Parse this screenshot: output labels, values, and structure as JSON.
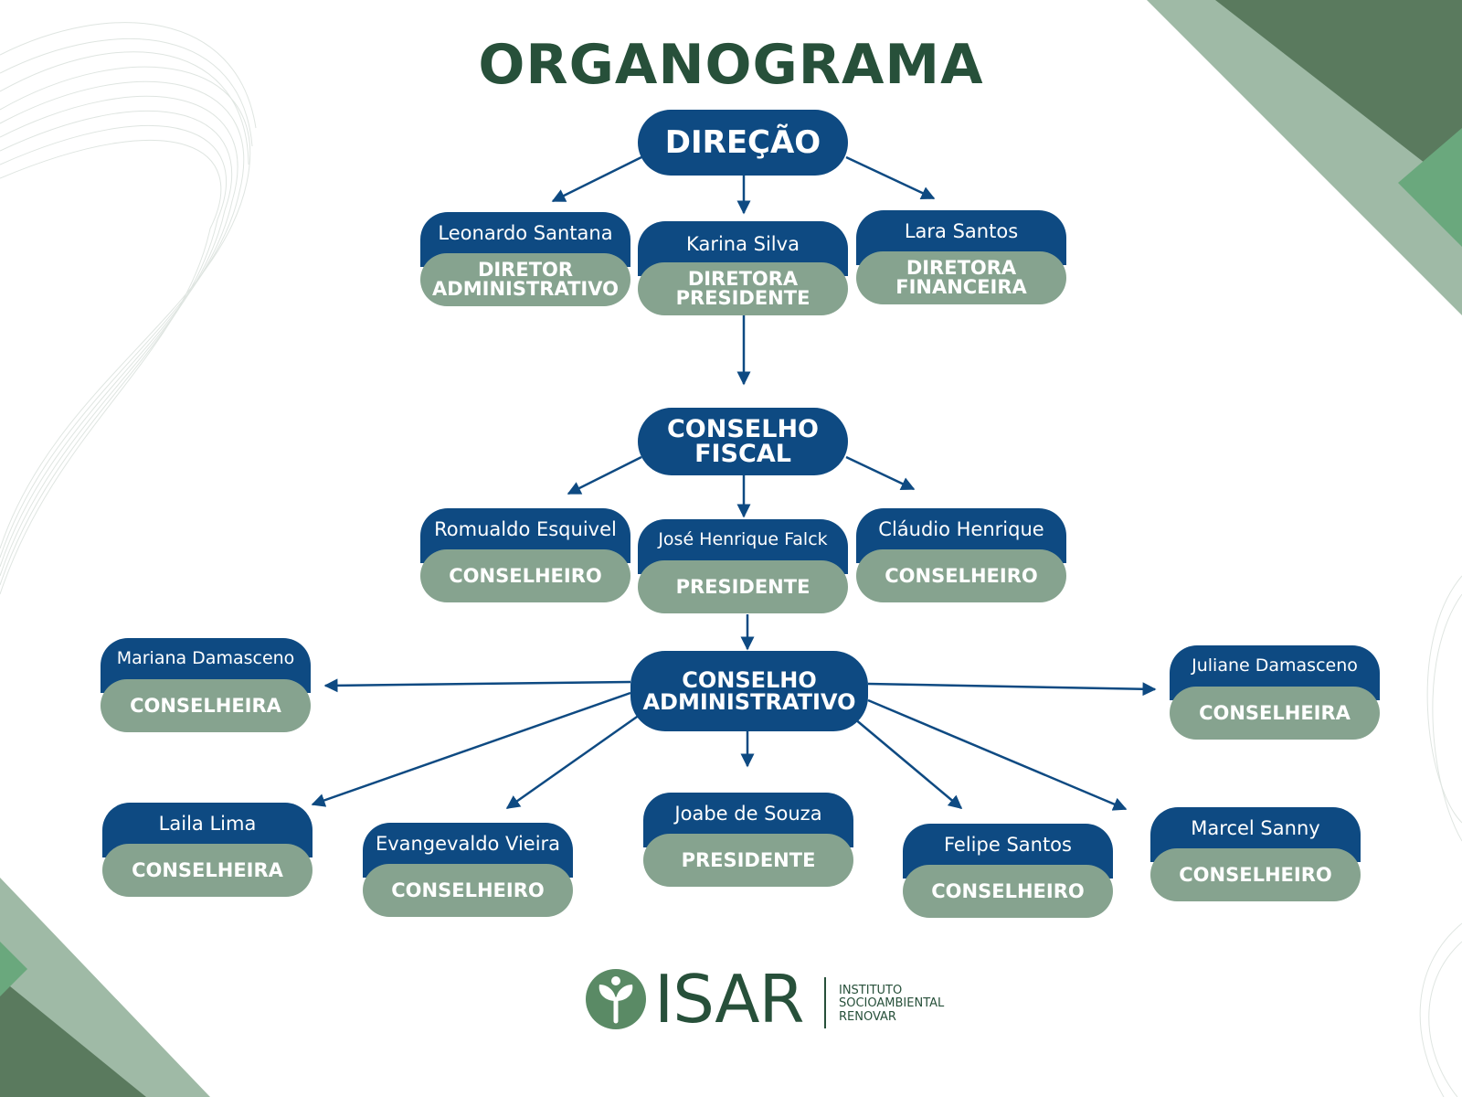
{
  "title": "ORGANOGRAMA",
  "colors": {
    "navy": "#0e4a82",
    "sage": "#86a38f",
    "dark_green": "#27503a",
    "corner_green": "#5a7a5e",
    "corner_light": "#9fbaa6"
  },
  "direcao": {
    "label": "DIREÇÃO",
    "members": [
      {
        "name": "Leonardo Santana",
        "role": "DIRETOR\nADMINISTRATIVO"
      },
      {
        "name": "Karina Silva",
        "role": "DIRETORA\nPRESIDENTE"
      },
      {
        "name": "Lara Santos",
        "role": "DIRETORA\nFINANCEIRA"
      }
    ]
  },
  "conselho_fiscal": {
    "label": "CONSELHO\nFISCAL",
    "members": [
      {
        "name": "Romualdo Esquivel",
        "role": "CONSELHEIRO"
      },
      {
        "name": "José Henrique Falck",
        "role": "PRESIDENTE"
      },
      {
        "name": "Cláudio Henrique",
        "role": "CONSELHEIRO"
      }
    ]
  },
  "conselho_administrativo": {
    "label": "CONSELHO\nADMINISTRATIVO",
    "members": [
      {
        "name": "Mariana Damasceno",
        "role": "CONSELHEIRA"
      },
      {
        "name": "Juliane Damasceno",
        "role": "CONSELHEIRA"
      },
      {
        "name": "Laila Lima",
        "role": "CONSELHEIRA"
      },
      {
        "name": "Evangevaldo Vieira",
        "role": "CONSELHEIRO"
      },
      {
        "name": "Joabe de Souza",
        "role": "PRESIDENTE"
      },
      {
        "name": "Felipe Santos",
        "role": "CONSELHEIRO"
      },
      {
        "name": "Marcel Sanny",
        "role": "CONSELHEIRO"
      }
    ]
  },
  "logo": {
    "name": "ISAR",
    "tagline": "INSTITUTO\nSOCIOAMBIENTAL\nRENOVAR",
    "icon": "sprout-icon"
  }
}
